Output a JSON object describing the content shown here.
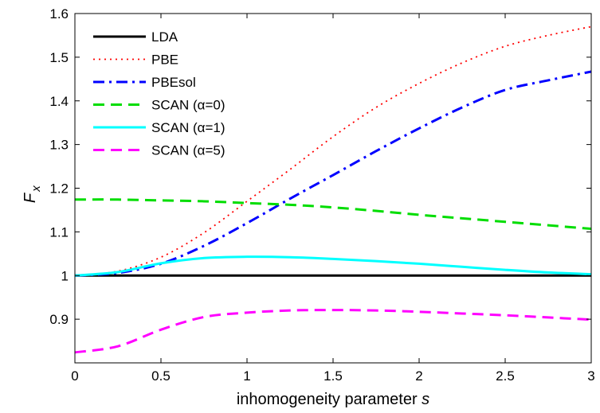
{
  "chart_data": {
    "type": "line",
    "title": "",
    "xlabel": "inhomogeneity parameter ",
    "xlabel_var": "s",
    "ylabel": "F",
    "ylabel_sub": "x",
    "xlim": [
      0,
      3
    ],
    "ylim": [
      0.8,
      1.6
    ],
    "x_ticks": [
      0,
      0.5,
      1,
      1.5,
      2,
      2.5,
      3
    ],
    "x_tick_labels": [
      "0",
      "0.5",
      "1",
      "1.5",
      "2",
      "2.5",
      "3"
    ],
    "y_ticks": [
      0.9,
      1.0,
      1.1,
      1.2,
      1.3,
      1.4,
      1.5,
      1.6
    ],
    "y_tick_labels": [
      "0.9",
      "1",
      "1.1",
      "1.2",
      "1.3",
      "1.4",
      "1.5",
      "1.6"
    ],
    "grid": false,
    "legend_position": "top-left",
    "x": [
      0,
      0.25,
      0.5,
      0.75,
      1.0,
      1.25,
      1.5,
      1.75,
      2.0,
      2.25,
      2.5,
      2.75,
      3.0
    ],
    "series": [
      {
        "name": "LDA",
        "color": "#000000",
        "style": "solid",
        "values": [
          1.0,
          1.0,
          1.0,
          1.0,
          1.0,
          1.0,
          1.0,
          1.0,
          1.0,
          1.0,
          1.0,
          1.0,
          1.0
        ]
      },
      {
        "name": "PBE",
        "color": "#ff0000",
        "style": "dotted",
        "values": [
          1.0,
          1.01,
          1.042,
          1.098,
          1.17,
          1.243,
          1.318,
          1.385,
          1.44,
          1.487,
          1.525,
          1.55,
          1.57
        ]
      },
      {
        "name": "PBEsol",
        "color": "#0000ff",
        "style": "dashdot",
        "values": [
          1.0,
          1.006,
          1.027,
          1.068,
          1.12,
          1.176,
          1.23,
          1.285,
          1.337,
          1.385,
          1.425,
          1.447,
          1.467
        ]
      },
      {
        "name": "SCAN (α=0)",
        "color": "#00dd00",
        "style": "dashed",
        "values": [
          1.174,
          1.174,
          1.172,
          1.17,
          1.166,
          1.162,
          1.156,
          1.148,
          1.139,
          1.131,
          1.123,
          1.115,
          1.107
        ]
      },
      {
        "name": "SCAN (α=1)",
        "color": "#00ffff",
        "style": "solid",
        "values": [
          1.0,
          1.008,
          1.028,
          1.04,
          1.043,
          1.042,
          1.038,
          1.033,
          1.027,
          1.02,
          1.013,
          1.007,
          1.003
        ]
      },
      {
        "name": "SCAN (α=5)",
        "color": "#ff00ff",
        "style": "dashed",
        "values": [
          0.824,
          0.838,
          0.876,
          0.905,
          0.915,
          0.92,
          0.921,
          0.92,
          0.917,
          0.913,
          0.909,
          0.904,
          0.899
        ]
      }
    ]
  }
}
